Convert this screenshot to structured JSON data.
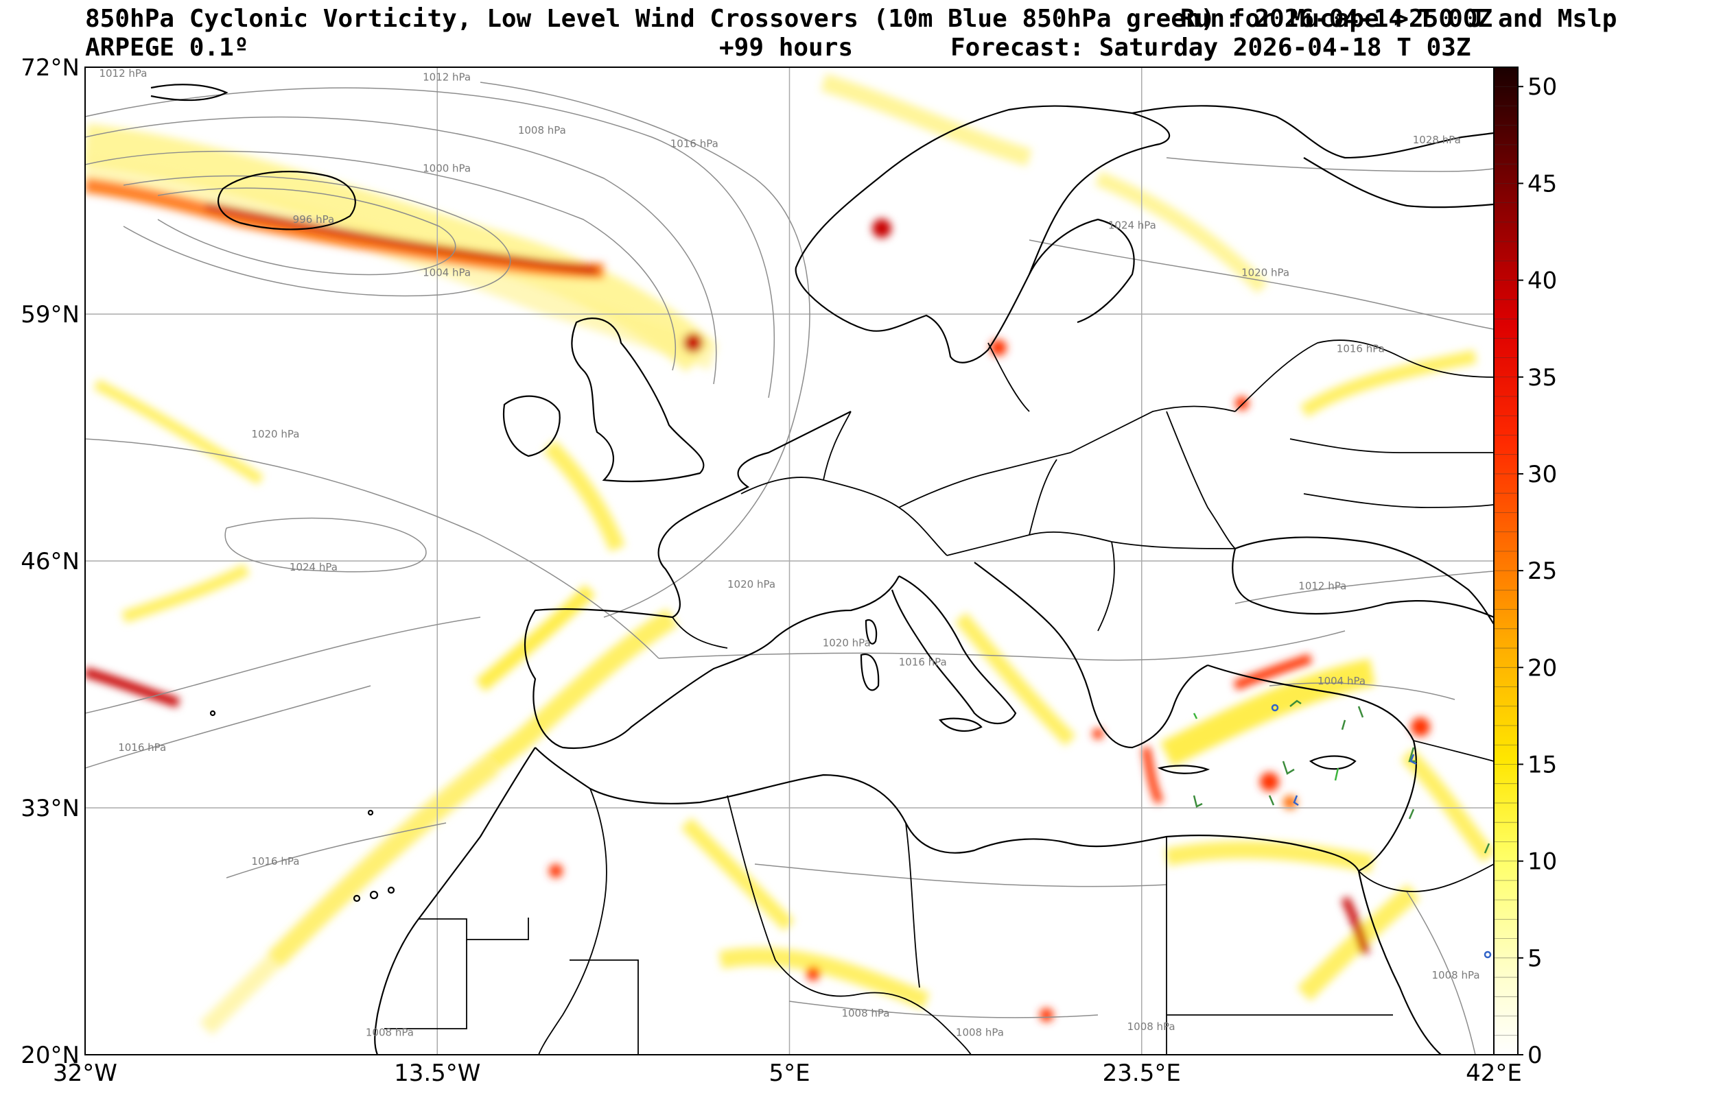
{
  "header": {
    "title_line1": "850hPa Cyclonic Vorticity, Low Level Wind Crossovers (10m Blue 850hPa green) for Mucape >250 J and Mslp",
    "run_label": "Run: 2026-04-14 T 00Z",
    "model": "ARPEGE 0.1º",
    "lead_time": "+99 hours",
    "forecast": "Forecast: Saturday 2026-04-18 T 03Z"
  },
  "map": {
    "extent": {
      "lon_min": -32,
      "lon_max": 42,
      "lat_min": 20,
      "lat_max": 72
    },
    "lat_ticks": [
      {
        "value": 72,
        "label": "72°N"
      },
      {
        "value": 59,
        "label": "59°N"
      },
      {
        "value": 46,
        "label": "46°N"
      },
      {
        "value": 33,
        "label": "33°N"
      },
      {
        "value": 20,
        "label": "20°N"
      }
    ],
    "lon_ticks": [
      {
        "value": -32,
        "label": "32°W"
      },
      {
        "value": -13.5,
        "label": "13.5°W"
      },
      {
        "value": 5,
        "label": "5°E"
      },
      {
        "value": 23.5,
        "label": "23.5°E"
      },
      {
        "value": 42,
        "label": "42°E"
      }
    ],
    "isobar_labels": [
      {
        "text": "1012 hPa",
        "lon": -30,
        "lat": 71.5
      },
      {
        "text": "1012 hPa",
        "lon": -13,
        "lat": 71.3
      },
      {
        "text": "1008 hPa",
        "lon": -8,
        "lat": 68.5
      },
      {
        "text": "1016 hPa",
        "lon": 0,
        "lat": 67.8
      },
      {
        "text": "1000 hPa",
        "lon": -13,
        "lat": 66.5
      },
      {
        "text": "996 hPa",
        "lon": -20,
        "lat": 63.8
      },
      {
        "text": "1004 hPa",
        "lon": -13,
        "lat": 61
      },
      {
        "text": "1028 hPa",
        "lon": 39,
        "lat": 68
      },
      {
        "text": "1024 hPa",
        "lon": 23,
        "lat": 63.5
      },
      {
        "text": "1020 hPa",
        "lon": 30,
        "lat": 61
      },
      {
        "text": "1016 hPa",
        "lon": 35,
        "lat": 57
      },
      {
        "text": "1020 hPa",
        "lon": -22,
        "lat": 52.5
      },
      {
        "text": "1024 hPa",
        "lon": -20,
        "lat": 45.5
      },
      {
        "text": "1020 hPa",
        "lon": 3,
        "lat": 44.6
      },
      {
        "text": "1020 hPa",
        "lon": 8,
        "lat": 41.5
      },
      {
        "text": "1016 hPa",
        "lon": 12,
        "lat": 40.5
      },
      {
        "text": "1012 hPa",
        "lon": 33,
        "lat": 44.5
      },
      {
        "text": "1004 hPa",
        "lon": 34,
        "lat": 39.5
      },
      {
        "text": "1016 hPa",
        "lon": -29,
        "lat": 36
      },
      {
        "text": "1016 hPa",
        "lon": -22,
        "lat": 30
      },
      {
        "text": "1008 hPa",
        "lon": 9,
        "lat": 22
      },
      {
        "text": "1008 hPa",
        "lon": 15,
        "lat": 21
      },
      {
        "text": "1008 hPa",
        "lon": 24,
        "lat": 21.3
      },
      {
        "text": "1008 hPa",
        "lon": 40,
        "lat": 24
      },
      {
        "text": "1008 hPa",
        "lon": -16,
        "lat": 21
      }
    ]
  },
  "colorbar": {
    "min": 0,
    "max": 51,
    "ticks": [
      "0",
      "5",
      "10",
      "15",
      "20",
      "25",
      "30",
      "35",
      "40",
      "45",
      "50"
    ]
  },
  "colors": {
    "low": "#ffffcc",
    "mid": "#ffe600",
    "high": "#ff8c00",
    "higher": "#ff1a00",
    "max": "#1a0000",
    "gridline": "#aaaaaa",
    "isobar": "#8c8c8c"
  }
}
